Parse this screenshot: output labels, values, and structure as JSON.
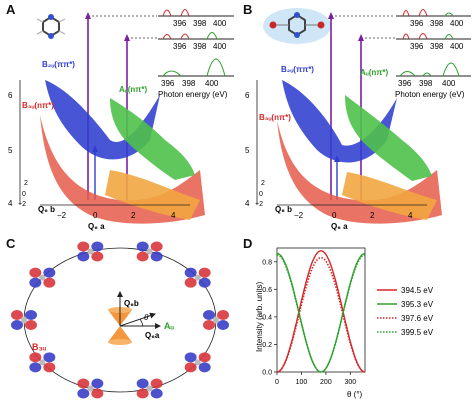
{
  "panels": {
    "A": {
      "letter": "A",
      "states": {
        "top": "B₂ᵤ(ππ*)",
        "mid": "Aᵤ(nπ*)",
        "low": "B₃ᵤ(nπ*)"
      },
      "z_ticks": [
        "6",
        "5",
        "4"
      ],
      "x_ticks": [
        "−2",
        "0",
        "2",
        "4"
      ],
      "q6a": "Q₆ a",
      "q6b": "Q₆ b",
      "q6b_ticks": [
        "2",
        "0",
        "−2"
      ],
      "spectrum_ticks": [
        "396",
        "398",
        "400"
      ],
      "photon_label": "Photon energy (eV)"
    },
    "B": {
      "letter": "B",
      "states": {
        "top": "B₂ᵤ(ππ*)",
        "mid": "Aᵤ(nπ*)",
        "low": "B₃ᵤ(nπ*)"
      },
      "z_ticks": [
        "6",
        "5",
        "4"
      ],
      "x_ticks": [
        "−2",
        "0",
        "2",
        "4"
      ],
      "q6a": "Q₆ a",
      "q6b": "Q₆ b",
      "q6b_ticks": [
        "2",
        "0",
        "−2"
      ],
      "spectrum_ticks": [
        "396",
        "398",
        "400"
      ],
      "photon_label": "Photon energy (eV)"
    },
    "C": {
      "letter": "C",
      "b3u": "B₃ᵤ",
      "au": "Aᵤ",
      "q6b": "Q₆b",
      "q6a": "Q₆a",
      "theta": "θ"
    },
    "D": {
      "letter": "D",
      "ylabel": "Intensity (arb. units)",
      "xlabel": "θ (°)"
    }
  },
  "colors": {
    "red": "#d62728",
    "green": "#2ca02c",
    "blue": "#2f3fcf",
    "purple": "#7b1fa2"
  },
  "chart_data": {
    "type": "line",
    "x_ticks": [
      "0",
      "100",
      "200",
      "300"
    ],
    "y_ticks": [
      "0.0",
      "0.2",
      "0.4",
      "0.6",
      "0.8"
    ],
    "xlim": [
      0,
      360
    ],
    "ylim": [
      0,
      0.9
    ],
    "xlabel": "θ (°)",
    "ylabel": "Intensity (arb. units)",
    "legend_position": "right",
    "series": [
      {
        "name": "394.5 eV",
        "color": "#d62728",
        "dash": "solid",
        "peak": 0.88,
        "phase": "sin",
        "x": [
          0,
          45,
          90,
          135,
          180,
          225,
          270,
          315,
          360
        ],
        "values": [
          0.0,
          0.13,
          0.44,
          0.75,
          0.88,
          0.75,
          0.44,
          0.13,
          0.0
        ]
      },
      {
        "name": "395.3 eV",
        "color": "#2ca02c",
        "dash": "solid",
        "peak": 0.86,
        "phase": "cos",
        "x": [
          0,
          45,
          90,
          135,
          180,
          225,
          270,
          315,
          360
        ],
        "values": [
          0.86,
          0.73,
          0.43,
          0.13,
          0.0,
          0.13,
          0.43,
          0.73,
          0.86
        ]
      },
      {
        "name": "397.6 eV",
        "color": "#d62728",
        "dash": "dotted",
        "peak": 0.83,
        "phase": "sin",
        "x": [
          0,
          45,
          90,
          135,
          180,
          225,
          270,
          315,
          360
        ],
        "values": [
          0.0,
          0.12,
          0.42,
          0.71,
          0.83,
          0.71,
          0.42,
          0.12,
          0.0
        ]
      },
      {
        "name": "399.5 eV",
        "color": "#2ca02c",
        "dash": "dotted",
        "peak": 0.85,
        "phase": "cos",
        "x": [
          0,
          45,
          90,
          135,
          180,
          225,
          270,
          315,
          360
        ],
        "values": [
          0.85,
          0.72,
          0.42,
          0.12,
          0.0,
          0.12,
          0.42,
          0.72,
          0.85
        ]
      }
    ]
  }
}
